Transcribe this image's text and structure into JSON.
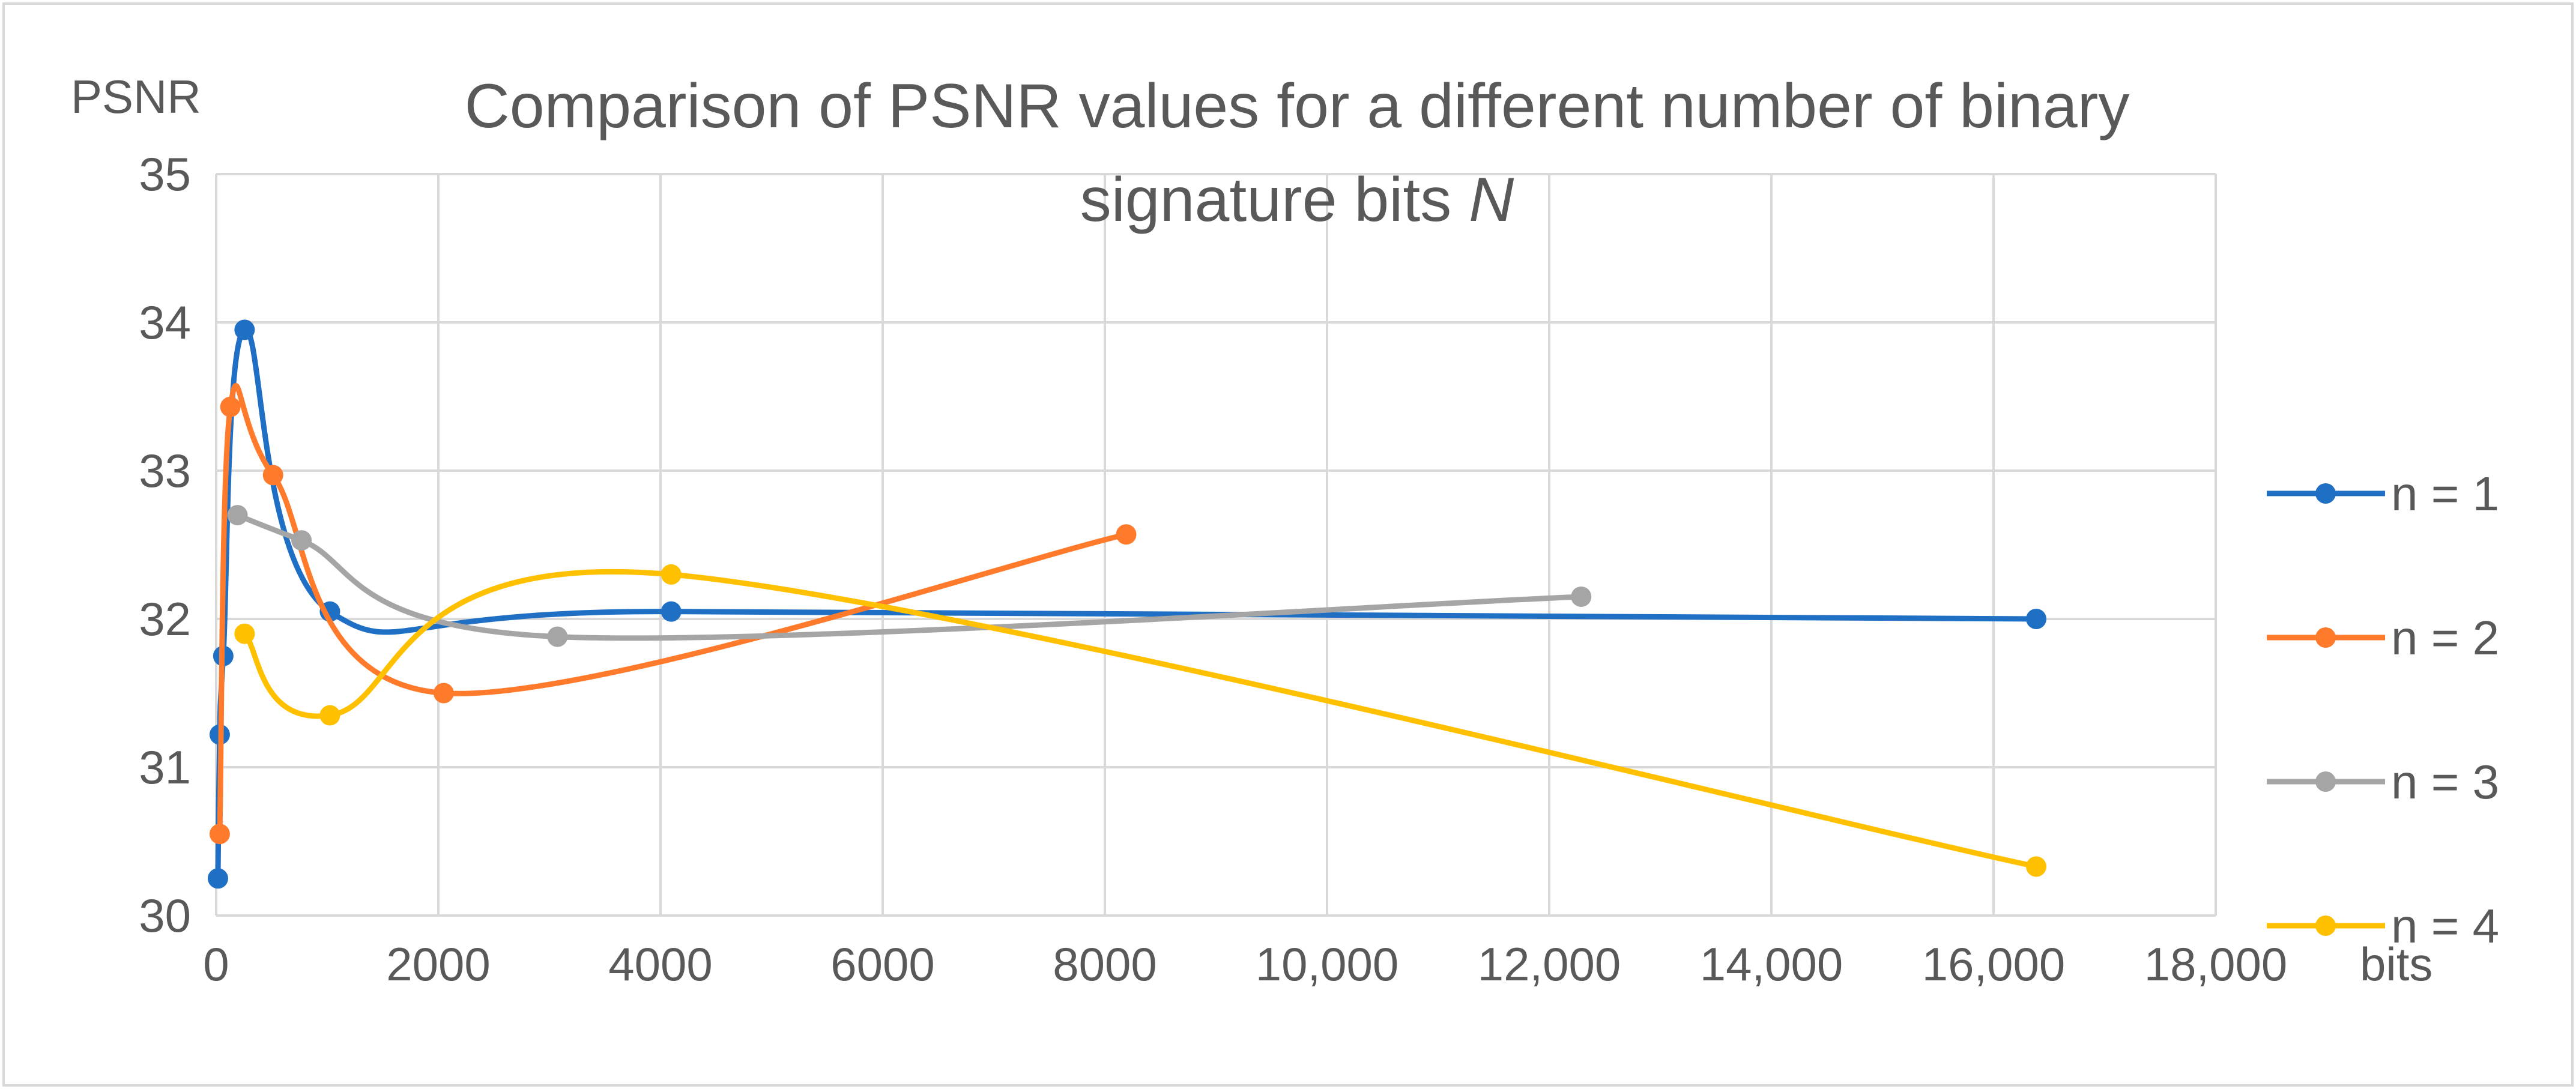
{
  "chart_data": {
    "type": "scatter",
    "title_parts": [
      "Comparison of PSNR values for a different number of binary",
      "signature bits ",
      "N"
    ],
    "ylabel": "PSNR",
    "xlabel": "bits",
    "xlim": [
      0,
      18000
    ],
    "ylim": [
      30,
      35
    ],
    "x_ticks": [
      0,
      2000,
      4000,
      6000,
      8000,
      10000,
      12000,
      14000,
      16000,
      18000
    ],
    "x_tick_labels": [
      "0",
      "2000",
      "4000",
      "6000",
      "8000",
      "10,000",
      "12,000",
      "14,000",
      "16,000",
      "18,000"
    ],
    "y_ticks": [
      30,
      31,
      32,
      33,
      34,
      35
    ],
    "y_tick_labels": [
      "30",
      "31",
      "32",
      "33",
      "34",
      "35"
    ],
    "grid": true,
    "smooth_lines": true,
    "legend_position": "right",
    "series": [
      {
        "name": "n = 1",
        "color": "#1f6fc5",
        "points": [
          [
            16,
            30.25
          ],
          [
            32,
            31.22
          ],
          [
            64,
            31.75
          ],
          [
            256,
            33.95
          ],
          [
            1024,
            32.05
          ],
          [
            4096,
            32.05
          ],
          [
            16384,
            32.0
          ]
        ]
      },
      {
        "name": "n = 2",
        "color": "#ff7a2a",
        "points": [
          [
            32,
            30.55
          ],
          [
            128,
            33.43
          ],
          [
            512,
            32.97
          ],
          [
            2048,
            31.5
          ],
          [
            8192,
            32.57
          ]
        ]
      },
      {
        "name": "n = 3",
        "color": "#a5a5a5",
        "points": [
          [
            192,
            32.7
          ],
          [
            768,
            32.53
          ],
          [
            3072,
            31.88
          ],
          [
            12288,
            32.15
          ]
        ]
      },
      {
        "name": "n = 4",
        "color": "#ffc000",
        "points": [
          [
            256,
            31.9
          ],
          [
            1024,
            31.35
          ],
          [
            4096,
            32.3
          ],
          [
            16384,
            30.33
          ]
        ]
      }
    ]
  }
}
